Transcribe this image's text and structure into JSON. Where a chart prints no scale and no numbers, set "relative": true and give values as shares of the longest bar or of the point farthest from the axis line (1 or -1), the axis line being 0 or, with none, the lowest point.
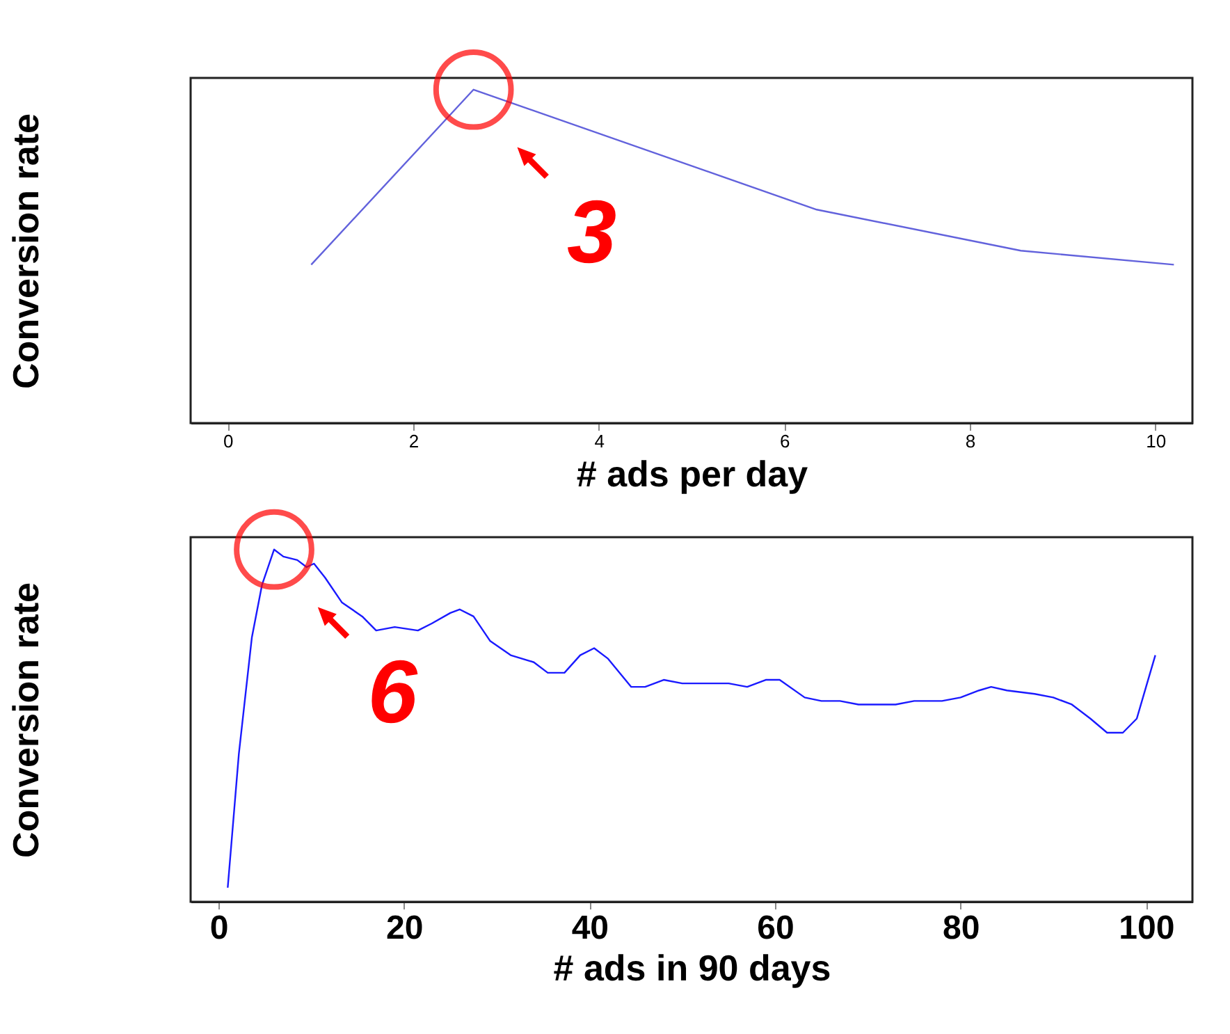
{
  "chart_data": [
    {
      "type": "line",
      "relative": true,
      "xlabel": "# ads per day",
      "ylabel": "Conversion rate",
      "xlim": [
        -0.4,
        10.4
      ],
      "xticks": [
        0,
        2,
        4,
        6,
        8,
        10
      ],
      "tick_labels": "x",
      "grid": false,
      "x": [
        0.9,
        2.65,
        6.35,
        8.55,
        10.2
      ],
      "series": [
        {
          "color": "#6262dc",
          "values": [
            0.475,
            1,
            0.64,
            0.517,
            0.475
          ]
        }
      ],
      "annotations": [
        {
          "text": "3",
          "x": 2.65,
          "y": 1
        }
      ]
    },
    {
      "type": "line",
      "relative": true,
      "xlabel": "# ads in 90 days",
      "ylabel": "Conversion rate",
      "xlim": [
        -3,
        105
      ],
      "xticks": [
        0,
        20,
        40,
        60,
        80,
        100
      ],
      "tick_labels": "x",
      "grid": false,
      "x": [
        1,
        2.2,
        3.6,
        4.7,
        6,
        7,
        8.5,
        9.5,
        10.3,
        11.5,
        13.3,
        15.5,
        17,
        19,
        21.5,
        23,
        25,
        26,
        27.5,
        29.3,
        31.5,
        34,
        35.5,
        37.3,
        39,
        40.5,
        42,
        44.5,
        46,
        48,
        50,
        55,
        57,
        59,
        60.5,
        63.2,
        65,
        67,
        69,
        73,
        75,
        78,
        80,
        82,
        83.3,
        85,
        88,
        90,
        92,
        94,
        95.8,
        97.5,
        99,
        100,
        101
      ],
      "series": [
        {
          "color": "#1a1aff",
          "values": [
            0.04,
            0.42,
            0.75,
            0.9,
            1,
            0.98,
            0.97,
            0.95,
            0.96,
            0.92,
            0.85,
            0.81,
            0.77,
            0.78,
            0.77,
            0.79,
            0.82,
            0.83,
            0.81,
            0.74,
            0.7,
            0.68,
            0.65,
            0.65,
            0.7,
            0.72,
            0.69,
            0.61,
            0.61,
            0.63,
            0.62,
            0.62,
            0.61,
            0.63,
            0.63,
            0.58,
            0.57,
            0.57,
            0.56,
            0.56,
            0.57,
            0.57,
            0.58,
            0.6,
            0.61,
            0.6,
            0.59,
            0.58,
            0.56,
            0.52,
            0.48,
            0.48,
            0.52,
            0.61,
            0.7
          ]
        }
      ],
      "annotations": [
        {
          "text": "6",
          "x": 6,
          "y": 1
        }
      ]
    }
  ]
}
